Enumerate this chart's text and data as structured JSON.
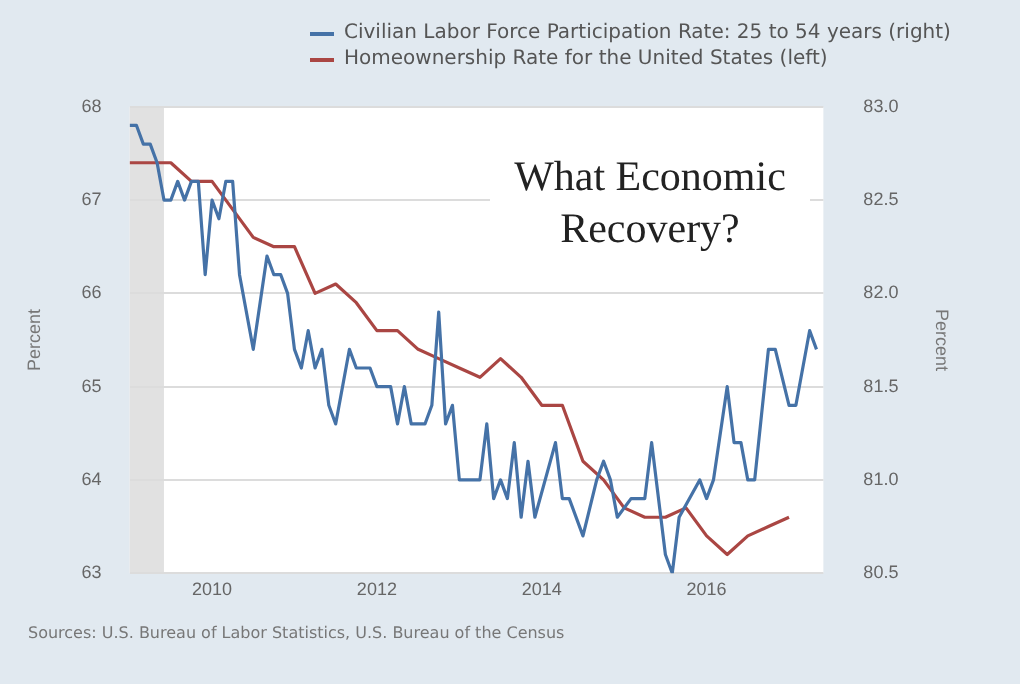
{
  "chart_data": {
    "type": "line",
    "title": "What Economic Recovery?",
    "ylabel": "Percent",
    "y2label": "Percent",
    "xlim": [
      "2009-01",
      "2017-06"
    ],
    "xticks": [
      "2010",
      "2012",
      "2014",
      "2016"
    ],
    "ylim": [
      63,
      68
    ],
    "yticks": [
      63,
      64,
      65,
      66,
      67,
      68
    ],
    "y2lim": [
      80.5,
      83
    ],
    "y2ticks": [
      80.5,
      {
        "value": 81,
        "label": "81.0"
      },
      81.5,
      {
        "value": 82,
        "label": "82.0"
      },
      82.5,
      {
        "value": 83,
        "label": "83.0"
      }
    ],
    "grid": "y",
    "legend": "top",
    "marker": "none",
    "line_style": "solid",
    "bands": [
      {
        "axis": "x",
        "from": "2009-01",
        "to": "2009-06",
        "color": "#e1e1e1"
      }
    ],
    "annotations": [
      "Sources: U.S. Bureau of Labor Statistics, U.S. Bureau of the Census"
    ],
    "series": [
      {
        "name": "Civilian Labor Force Participation Rate: 25 to 54 years (right)",
        "color": "#4572a7",
        "axis": "y2",
        "x": [
          "2009-01",
          "2009-02",
          "2009-03",
          "2009-04",
          "2009-05",
          "2009-06",
          "2009-07",
          "2009-08",
          "2009-09",
          "2009-10",
          "2009-11",
          "2009-12",
          "2010-01",
          "2010-02",
          "2010-03",
          "2010-04",
          "2010-05",
          "2010-07",
          "2010-09",
          "2010-10",
          "2010-11",
          "2010-12",
          "2011-01",
          "2011-02",
          "2011-03",
          "2011-04",
          "2011-05",
          "2011-06",
          "2011-07",
          "2011-09",
          "2011-10",
          "2011-12",
          "2012-01",
          "2012-03",
          "2012-04",
          "2012-05",
          "2012-06",
          "2012-08",
          "2012-09",
          "2012-10",
          "2012-11",
          "2012-12",
          "2013-01",
          "2013-04",
          "2013-05",
          "2013-06",
          "2013-07",
          "2013-08",
          "2013-09",
          "2013-10",
          "2013-11",
          "2013-12",
          "2014-03",
          "2014-04",
          "2014-05",
          "2014-07",
          "2014-09",
          "2014-10",
          "2014-11",
          "2014-12",
          "2015-02",
          "2015-04",
          "2015-05",
          "2015-07",
          "2015-08",
          "2015-09",
          "2015-12",
          "2016-01",
          "2016-02",
          "2016-04",
          "2016-05",
          "2016-06",
          "2016-07",
          "2016-08",
          "2016-10",
          "2016-11",
          "2017-01",
          "2017-02",
          "2017-04",
          "2017-05"
        ],
        "values": [
          82.9,
          82.9,
          82.8,
          82.8,
          82.7,
          82.5,
          82.5,
          82.6,
          82.5,
          82.6,
          82.6,
          82.1,
          82.5,
          82.4,
          82.6,
          82.6,
          82.1,
          81.7,
          82.2,
          82.1,
          82.1,
          82.0,
          81.7,
          81.6,
          81.8,
          81.6,
          81.7,
          81.4,
          81.3,
          81.7,
          81.6,
          81.6,
          81.5,
          81.5,
          81.3,
          81.5,
          81.3,
          81.3,
          81.4,
          81.9,
          81.3,
          81.4,
          81.0,
          81.0,
          81.3,
          80.9,
          81.0,
          80.9,
          81.2,
          80.8,
          81.1,
          80.8,
          81.2,
          80.9,
          80.9,
          80.7,
          81.0,
          81.1,
          81.0,
          80.8,
          80.9,
          80.9,
          81.2,
          80.6,
          80.5,
          80.8,
          81.0,
          80.9,
          81.0,
          81.5,
          81.2,
          81.2,
          81.0,
          81.0,
          81.7,
          81.7,
          81.4,
          81.4,
          81.8,
          81.7
        ]
      },
      {
        "name": "Homeownership Rate for the United States (left)",
        "color": "#aa4643",
        "x": [
          "2009-01",
          "2009-04",
          "2009-07",
          "2009-10",
          "2010-01",
          "2010-04",
          "2010-07",
          "2010-10",
          "2011-01",
          "2011-04",
          "2011-07",
          "2011-10",
          "2012-01",
          "2012-04",
          "2012-07",
          "2012-10",
          "2013-01",
          "2013-04",
          "2013-07",
          "2013-10",
          "2014-01",
          "2014-04",
          "2014-07",
          "2014-10",
          "2015-01",
          "2015-04",
          "2015-07",
          "2015-10",
          "2016-01",
          "2016-04",
          "2016-07",
          "2016-10",
          "2017-01"
        ],
        "values": [
          67.4,
          67.4,
          67.4,
          67.2,
          67.2,
          66.9,
          66.6,
          66.5,
          66.5,
          66.0,
          66.1,
          65.9,
          65.6,
          65.6,
          65.4,
          65.3,
          65.2,
          65.1,
          65.3,
          65.1,
          64.8,
          64.8,
          64.2,
          64.0,
          63.7,
          63.6,
          63.6,
          63.7,
          63.4,
          63.2,
          63.4,
          63.5,
          63.6
        ]
      }
    ]
  }
}
